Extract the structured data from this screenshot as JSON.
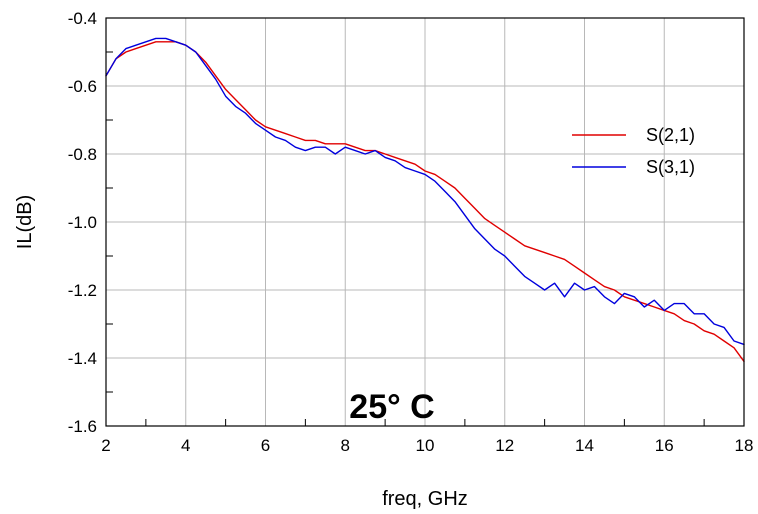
{
  "chart_data": {
    "type": "line",
    "title": "",
    "xlabel": "freq, GHz",
    "ylabel": "IL(dB)",
    "xlim": [
      2,
      18
    ],
    "ylim": [
      -1.6,
      -0.4
    ],
    "xticks": [
      2,
      4,
      6,
      8,
      10,
      12,
      14,
      16,
      18
    ],
    "yticks": [
      -1.6,
      -1.4,
      -1.2,
      -1.0,
      -0.8,
      -0.6,
      -0.4
    ],
    "xtick_labels": [
      "2",
      "4",
      "6",
      "8",
      "10",
      "12",
      "14",
      "16",
      "18"
    ],
    "ytick_labels": [
      "-1.6",
      "-1.4",
      "-1.2",
      "-1.0",
      "-0.8",
      "-0.6",
      "-0.4"
    ],
    "grid": true,
    "legend_position": "right",
    "annotation": "25° C",
    "series": [
      {
        "name": "S(2,1)",
        "color": "#e00000",
        "x": [
          2.0,
          2.25,
          2.5,
          2.75,
          3.0,
          3.25,
          3.5,
          3.75,
          4.0,
          4.25,
          4.5,
          4.75,
          5.0,
          5.25,
          5.5,
          5.75,
          6.0,
          6.25,
          6.5,
          6.75,
          7.0,
          7.25,
          7.5,
          7.75,
          8.0,
          8.25,
          8.5,
          8.75,
          9.0,
          9.25,
          9.5,
          9.75,
          10.0,
          10.25,
          10.5,
          10.75,
          11.0,
          11.25,
          11.5,
          11.75,
          12.0,
          12.25,
          12.5,
          12.75,
          13.0,
          13.25,
          13.5,
          13.75,
          14.0,
          14.25,
          14.5,
          14.75,
          15.0,
          15.25,
          15.5,
          15.75,
          16.0,
          16.25,
          16.5,
          16.75,
          17.0,
          17.25,
          17.5,
          17.75,
          18.0
        ],
        "values": [
          -0.57,
          -0.52,
          -0.5,
          -0.49,
          -0.48,
          -0.47,
          -0.47,
          -0.47,
          -0.48,
          -0.5,
          -0.53,
          -0.57,
          -0.61,
          -0.64,
          -0.67,
          -0.7,
          -0.72,
          -0.73,
          -0.74,
          -0.75,
          -0.76,
          -0.76,
          -0.77,
          -0.77,
          -0.77,
          -0.78,
          -0.79,
          -0.79,
          -0.8,
          -0.81,
          -0.82,
          -0.83,
          -0.85,
          -0.86,
          -0.88,
          -0.9,
          -0.93,
          -0.96,
          -0.99,
          -1.01,
          -1.03,
          -1.05,
          -1.07,
          -1.08,
          -1.09,
          -1.1,
          -1.11,
          -1.13,
          -1.15,
          -1.17,
          -1.19,
          -1.2,
          -1.22,
          -1.23,
          -1.24,
          -1.25,
          -1.26,
          -1.27,
          -1.29,
          -1.3,
          -1.32,
          -1.33,
          -1.35,
          -1.37,
          -1.41
        ]
      },
      {
        "name": "S(3,1)",
        "color": "#0000dd",
        "x": [
          2.0,
          2.25,
          2.5,
          2.75,
          3.0,
          3.25,
          3.5,
          3.75,
          4.0,
          4.25,
          4.5,
          4.75,
          5.0,
          5.25,
          5.5,
          5.75,
          6.0,
          6.25,
          6.5,
          6.75,
          7.0,
          7.25,
          7.5,
          7.75,
          8.0,
          8.25,
          8.5,
          8.75,
          9.0,
          9.25,
          9.5,
          9.75,
          10.0,
          10.25,
          10.5,
          10.75,
          11.0,
          11.25,
          11.5,
          11.75,
          12.0,
          12.25,
          12.5,
          12.75,
          13.0,
          13.25,
          13.5,
          13.75,
          14.0,
          14.25,
          14.5,
          14.75,
          15.0,
          15.25,
          15.5,
          15.75,
          16.0,
          16.25,
          16.5,
          16.75,
          17.0,
          17.25,
          17.5,
          17.75,
          18.0
        ],
        "values": [
          -0.57,
          -0.52,
          -0.49,
          -0.48,
          -0.47,
          -0.46,
          -0.46,
          -0.47,
          -0.48,
          -0.5,
          -0.54,
          -0.58,
          -0.63,
          -0.66,
          -0.68,
          -0.71,
          -0.73,
          -0.75,
          -0.76,
          -0.78,
          -0.79,
          -0.78,
          -0.78,
          -0.8,
          -0.78,
          -0.79,
          -0.8,
          -0.79,
          -0.81,
          -0.82,
          -0.84,
          -0.85,
          -0.86,
          -0.88,
          -0.91,
          -0.94,
          -0.98,
          -1.02,
          -1.05,
          -1.08,
          -1.1,
          -1.13,
          -1.16,
          -1.18,
          -1.2,
          -1.18,
          -1.22,
          -1.18,
          -1.2,
          -1.19,
          -1.22,
          -1.24,
          -1.21,
          -1.22,
          -1.25,
          -1.23,
          -1.26,
          -1.24,
          -1.24,
          -1.27,
          -1.27,
          -1.3,
          -1.31,
          -1.35,
          -1.36
        ]
      }
    ]
  }
}
